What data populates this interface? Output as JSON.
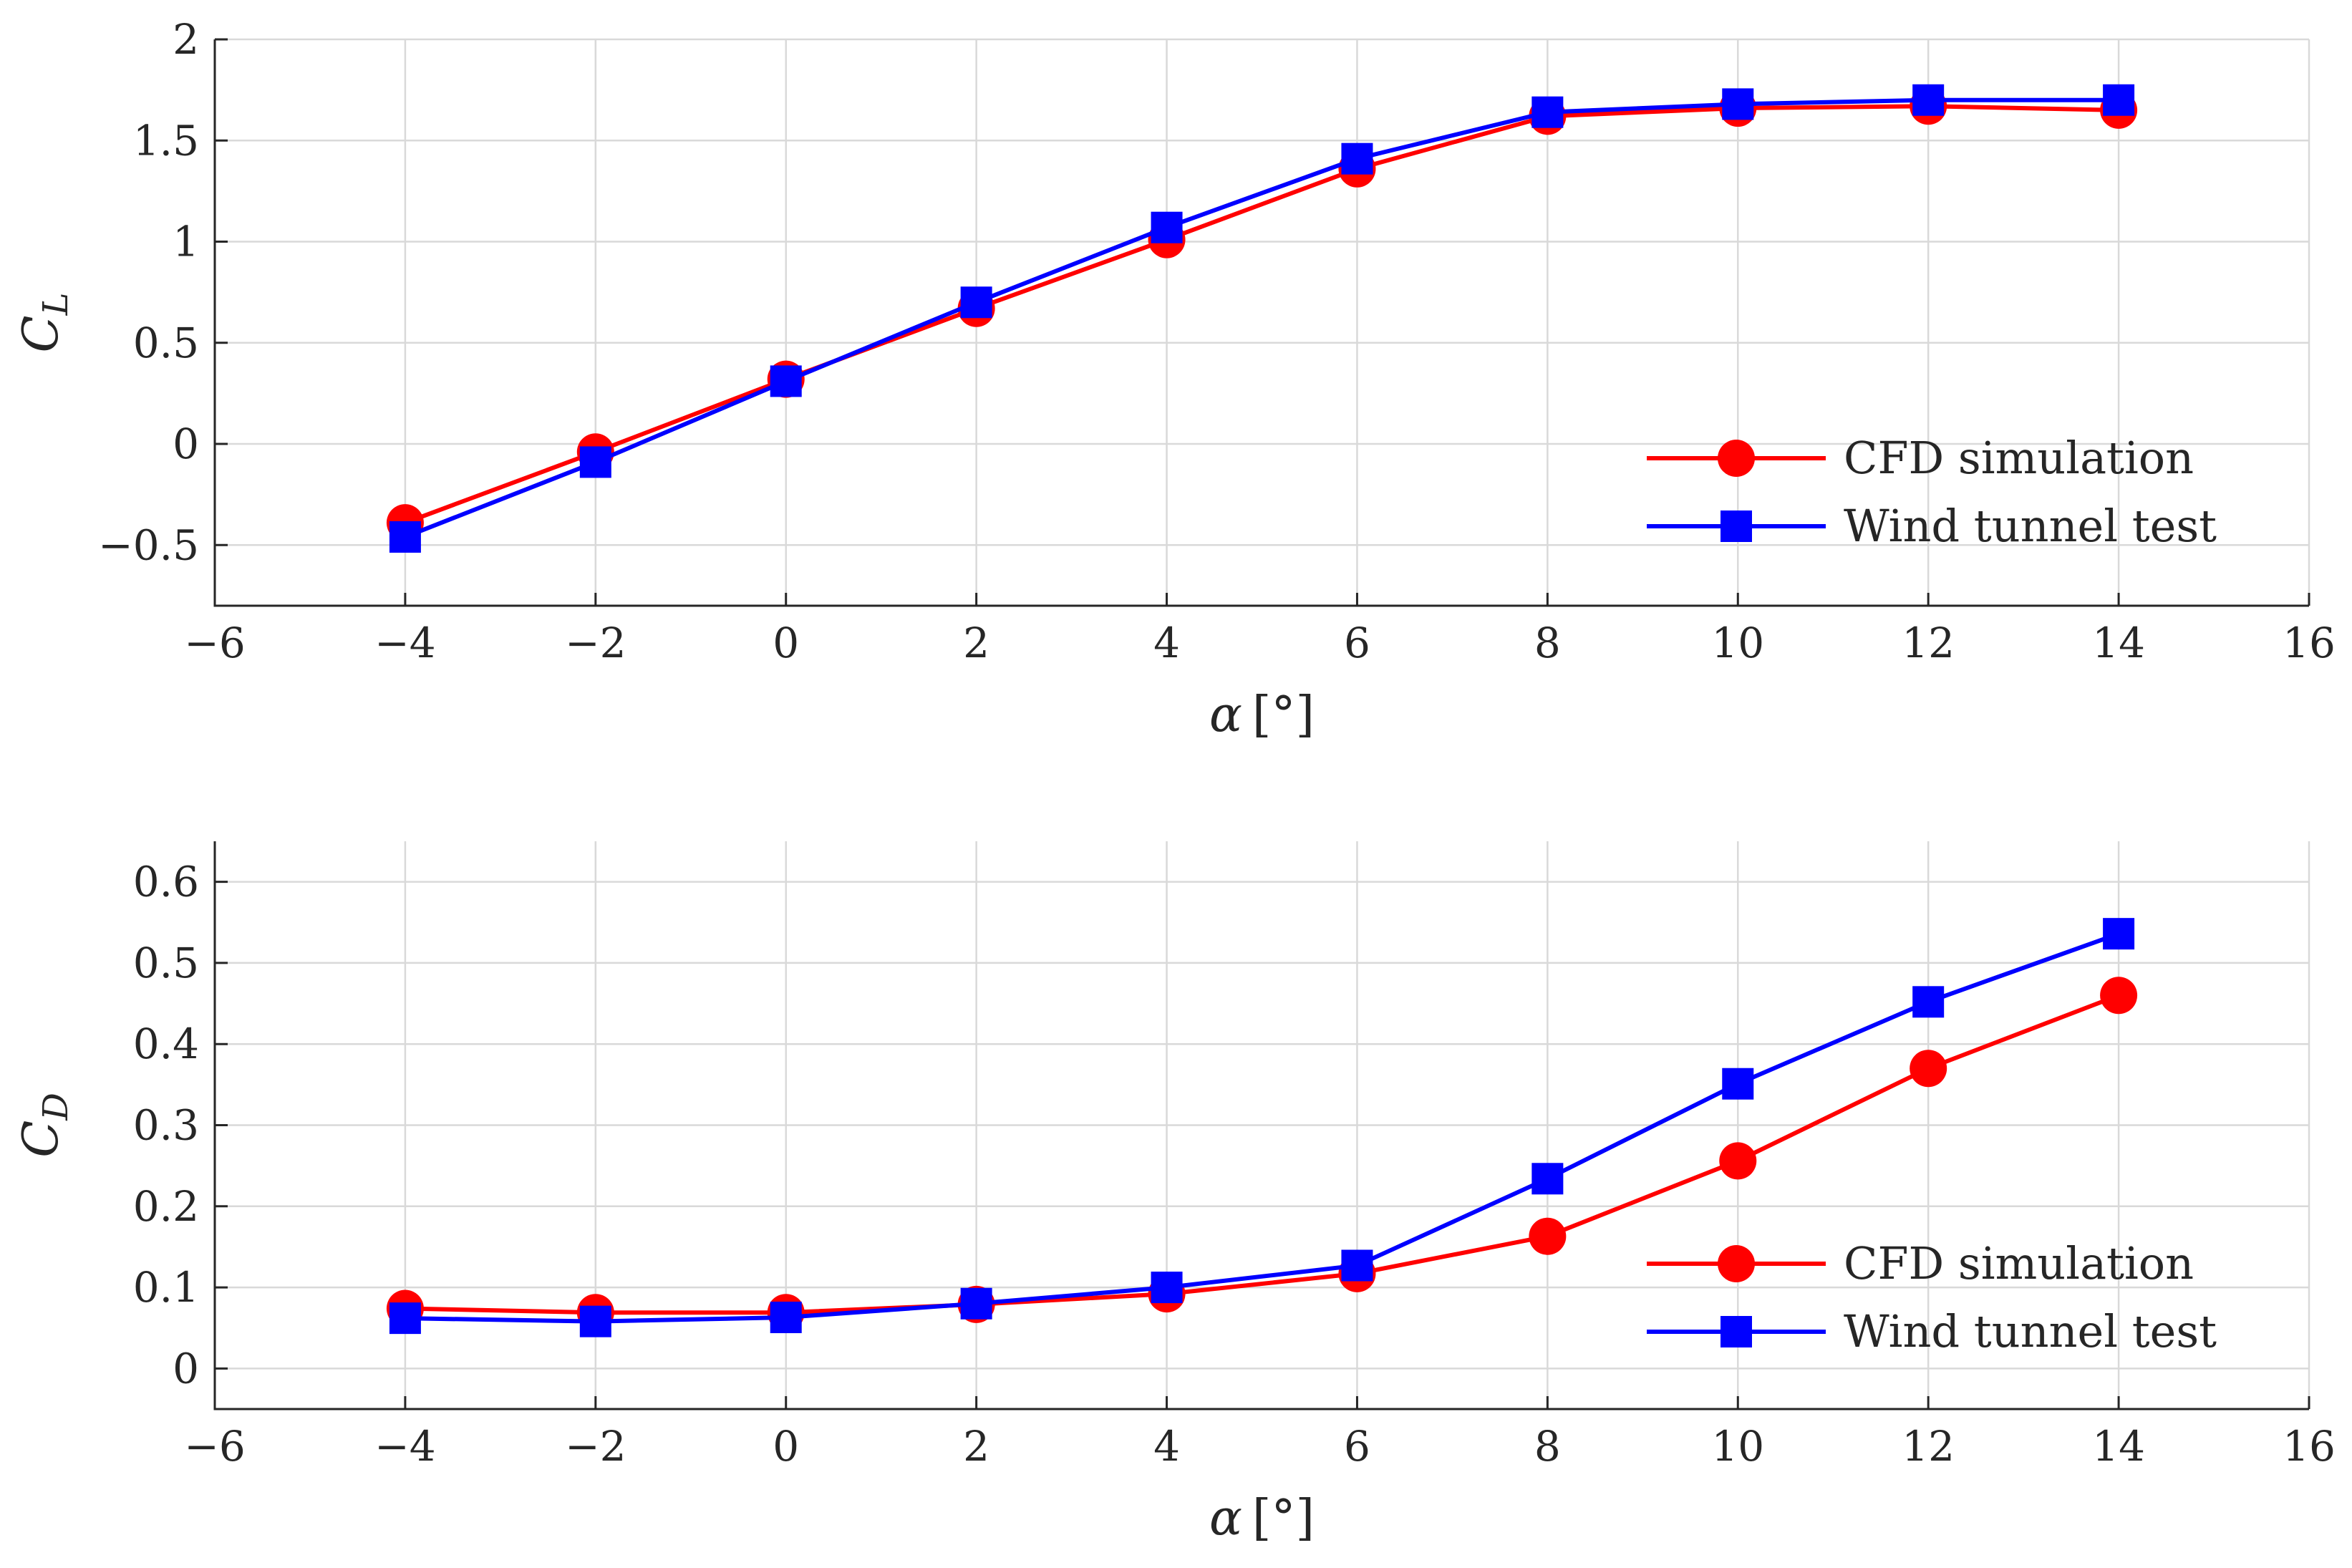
{
  "colors": {
    "cfd": "#ff0000",
    "wind": "#0000ff"
  },
  "chart_data": [
    {
      "type": "line",
      "id": "lift",
      "ylabel_main": "C",
      "ylabel_sub": "L",
      "xlabel_main": "α",
      "xlabel_unit": "[°]",
      "xlim": [
        -6,
        16
      ],
      "ylim": [
        -0.8,
        2
      ],
      "xticks": [
        -6,
        -4,
        -2,
        0,
        2,
        4,
        6,
        8,
        10,
        12,
        14,
        16
      ],
      "yticks": [
        -0.5,
        0,
        0.5,
        1,
        1.5,
        2
      ],
      "xtick_labels": [
        "−6",
        "−4",
        "−2",
        "0",
        "2",
        "4",
        "6",
        "8",
        "10",
        "12",
        "14",
        "16"
      ],
      "ytick_labels": [
        "−0.5",
        "0",
        "0.5",
        "1",
        "1.5",
        "2"
      ],
      "grid": true,
      "legend_position": "lower-right",
      "series": [
        {
          "name": "CFD simulation",
          "marker": "circle",
          "x": [
            -4,
            -2,
            0,
            2,
            4,
            6,
            8,
            10,
            12,
            14
          ],
          "values": [
            -0.39,
            -0.04,
            0.32,
            0.67,
            1.01,
            1.36,
            1.62,
            1.66,
            1.67,
            1.65
          ]
        },
        {
          "name": "Wind tunnel test",
          "marker": "square",
          "x": [
            -4,
            -2,
            0,
            2,
            4,
            6,
            8,
            10,
            12,
            14
          ],
          "values": [
            -0.46,
            -0.09,
            0.31,
            0.7,
            1.07,
            1.41,
            1.64,
            1.68,
            1.7,
            1.7
          ]
        }
      ]
    },
    {
      "type": "line",
      "id": "drag",
      "ylabel_main": "C",
      "ylabel_sub": "D",
      "xlabel_main": "α",
      "xlabel_unit": "[°]",
      "xlim": [
        -6,
        16
      ],
      "ylim": [
        -0.05,
        0.65
      ],
      "xticks": [
        -6,
        -4,
        -2,
        0,
        2,
        4,
        6,
        8,
        10,
        12,
        14,
        16
      ],
      "yticks": [
        0,
        0.1,
        0.2,
        0.3,
        0.4,
        0.5,
        0.6
      ],
      "xtick_labels": [
        "−6",
        "−4",
        "−2",
        "0",
        "2",
        "4",
        "6",
        "8",
        "10",
        "12",
        "14",
        "16"
      ],
      "ytick_labels": [
        "0",
        "0.1",
        "0.2",
        "0.3",
        "0.4",
        "0.5",
        "0.6"
      ],
      "grid": true,
      "legend_position": "lower-right",
      "series": [
        {
          "name": "CFD simulation",
          "marker": "circle",
          "x": [
            -4,
            -2,
            0,
            2,
            4,
            6,
            8,
            10,
            12,
            14
          ],
          "values": [
            0.074,
            0.069,
            0.069,
            0.079,
            0.092,
            0.117,
            0.163,
            0.256,
            0.37,
            0.46
          ]
        },
        {
          "name": "Wind tunnel test",
          "marker": "square",
          "x": [
            -4,
            -2,
            0,
            2,
            4,
            6,
            8,
            10,
            12,
            14
          ],
          "values": [
            0.062,
            0.058,
            0.063,
            0.08,
            0.1,
            0.127,
            0.234,
            0.351,
            0.452,
            0.536
          ]
        }
      ]
    }
  ]
}
